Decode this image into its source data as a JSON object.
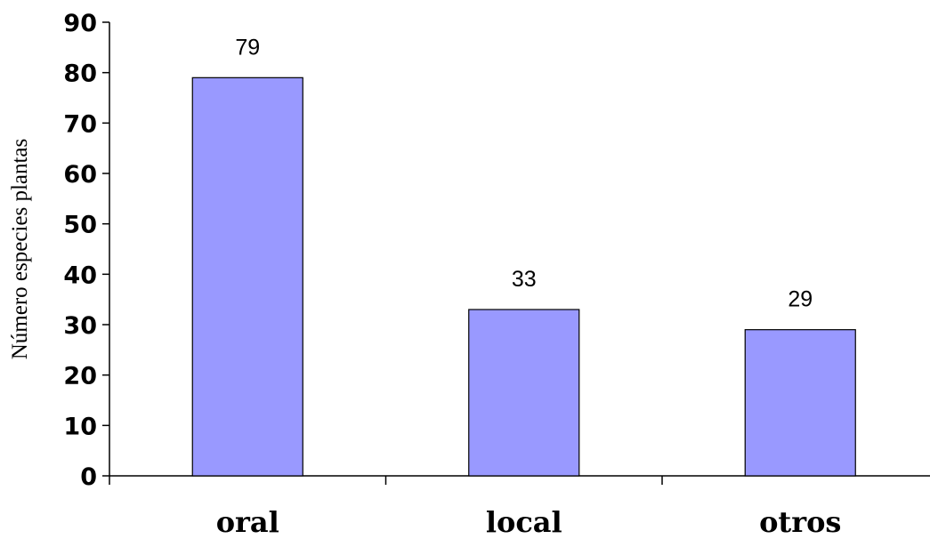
{
  "chart_data": {
    "type": "bar",
    "categories": [
      "oral",
      "local",
      "otros"
    ],
    "values": [
      79,
      33,
      29
    ],
    "data_labels": [
      "79",
      "33",
      "29"
    ],
    "title": "",
    "xlabel": "",
    "ylabel": "Número especies plantas",
    "ylim": [
      0,
      90
    ],
    "yticks": [
      0,
      10,
      20,
      30,
      40,
      50,
      60,
      70,
      80,
      90
    ],
    "grid": false,
    "legend": "none",
    "bar_color": "#9999ff",
    "bar_stroke": "#000000"
  }
}
